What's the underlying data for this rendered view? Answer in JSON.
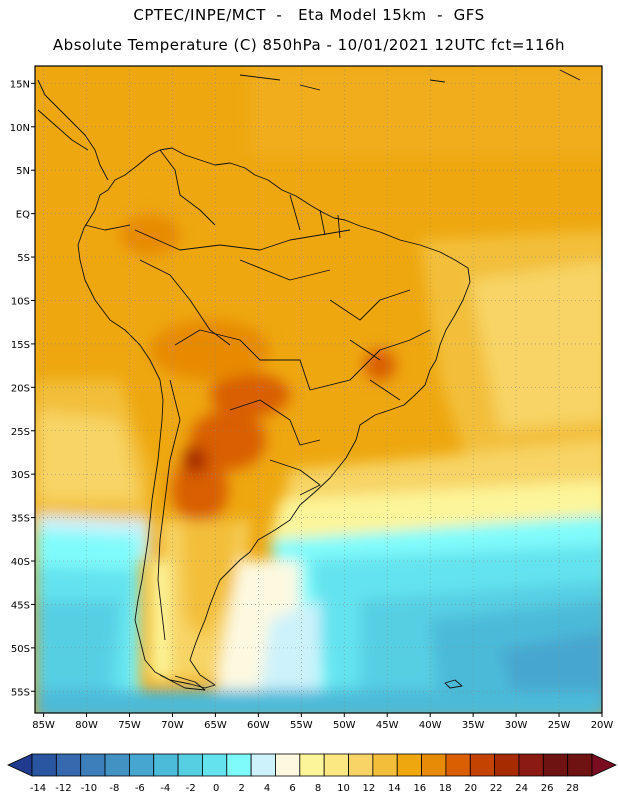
{
  "header": {
    "line1": "CPTEC/INPE/MCT  -   Eta Model 15km  -  GFS",
    "line2": "Absolute Temperature (C) 850hPa - 10/01/2021 12UTC fct=116h"
  },
  "map": {
    "region": "South America",
    "lat_labels": [
      "15N",
      "10N",
      "5N",
      "EQ",
      "5S",
      "10S",
      "15S",
      "20S",
      "25S",
      "30S",
      "35S",
      "40S",
      "45S",
      "50S",
      "55S"
    ],
    "lon_labels": [
      "85W",
      "80W",
      "75W",
      "70W",
      "65W",
      "60W",
      "55W",
      "50W",
      "45W",
      "40W",
      "35W",
      "30W",
      "25W",
      "20W"
    ],
    "lat_range": [
      17,
      -57.5
    ],
    "lon_range": [
      -86,
      -20
    ],
    "gridlines": "dotted"
  },
  "colorbar": {
    "tick_labels": [
      "-14",
      "-12",
      "-10",
      "-8",
      "-6",
      "-4",
      "-2",
      "0",
      "2",
      "4",
      "6",
      "8",
      "10",
      "12",
      "14",
      "16",
      "18",
      "20",
      "22",
      "24",
      "26",
      "28"
    ],
    "colors": [
      "#1f3a8f",
      "#2a55a0",
      "#3669ad",
      "#3d7fbb",
      "#4293c4",
      "#47a6cf",
      "#4cbad9",
      "#56cfe3",
      "#64e3ef",
      "#80fbfb",
      "#cdf2fb",
      "#fdf9e1",
      "#fdf59a",
      "#fbe882",
      "#f7d465",
      "#f3bf3a",
      "#eea70f",
      "#e78a05",
      "#d95f00",
      "#c44300",
      "#a62b00",
      "#8b1a12",
      "#6e1212",
      "#7a0c22"
    ],
    "bin_bounds": [
      -14,
      -12,
      -10,
      -8,
      -6,
      -4,
      -2,
      0,
      2,
      4,
      6,
      8,
      10,
      12,
      14,
      16,
      18,
      20,
      22,
      24,
      26,
      28
    ]
  }
}
